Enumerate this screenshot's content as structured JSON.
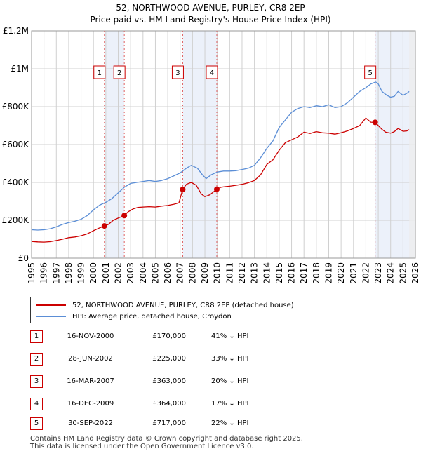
{
  "chart_data": {
    "type": "line",
    "title": "52, NORTHWOOD AVENUE, PURLEY, CR8 2EP",
    "subtitle": "Price paid vs. HM Land Registry's House Price Index (HPI)",
    "xlabel": "",
    "ylabel": "",
    "xlim": [
      1995,
      2026
    ],
    "ylim": [
      0,
      1200000
    ],
    "x_ticks": [
      "1995",
      "1996",
      "1997",
      "1998",
      "1999",
      "2000",
      "2001",
      "2002",
      "2003",
      "2004",
      "2005",
      "2006",
      "2007",
      "2008",
      "2009",
      "2010",
      "2011",
      "2012",
      "2013",
      "2014",
      "2015",
      "2016",
      "2017",
      "2018",
      "2019",
      "2020",
      "2021",
      "2022",
      "2023",
      "2024",
      "2025",
      "2026"
    ],
    "y_ticks": [
      {
        "value": 0,
        "label": "£0"
      },
      {
        "value": 200000,
        "label": "£200K"
      },
      {
        "value": 400000,
        "label": "£400K"
      },
      {
        "value": 600000,
        "label": "£600K"
      },
      {
        "value": 800000,
        "label": "£800K"
      },
      {
        "value": 1000000,
        "label": "£1M"
      },
      {
        "value": 1200000,
        "label": "£1.2M"
      }
    ],
    "grid": true,
    "colors": {
      "property": "#cc0000",
      "hpi": "#5b8ed6",
      "shade": "#dde6f5",
      "grid": "#d0d0d0",
      "vline": "#e06060"
    },
    "series": [
      {
        "name": "52, NORTHWOOD AVENUE, PURLEY, CR8 2EP (detached house)",
        "key": "property",
        "x": [
          1995.0,
          1995.5,
          1996.0,
          1996.5,
          1997.0,
          1997.5,
          1998.0,
          1998.5,
          1999.0,
          1999.5,
          2000.0,
          2000.5,
          2000.88,
          2001.2,
          2001.6,
          2002.0,
          2002.49,
          2002.8,
          2003.2,
          2003.6,
          2004.0,
          2004.5,
          2005.0,
          2005.5,
          2006.0,
          2006.5,
          2006.9,
          2007.21,
          2007.5,
          2007.9,
          2008.3,
          2008.7,
          2009.0,
          2009.4,
          2009.96,
          2010.3,
          2010.7,
          2011.0,
          2011.5,
          2012.0,
          2012.5,
          2013.0,
          2013.5,
          2014.0,
          2014.5,
          2015.0,
          2015.5,
          2016.0,
          2016.5,
          2017.0,
          2017.5,
          2018.0,
          2018.5,
          2019.0,
          2019.5,
          2020.0,
          2020.5,
          2021.0,
          2021.5,
          2022.0,
          2022.4,
          2022.75,
          2023.0,
          2023.3,
          2023.6,
          2024.0,
          2024.3,
          2024.6,
          2025.0,
          2025.3,
          2025.5
        ],
        "values": [
          88000,
          86000,
          85000,
          87000,
          93000,
          100000,
          108000,
          112000,
          118000,
          128000,
          145000,
          160000,
          170000,
          178000,
          200000,
          212000,
          225000,
          245000,
          260000,
          268000,
          270000,
          272000,
          270000,
          275000,
          278000,
          285000,
          292000,
          363000,
          390000,
          400000,
          385000,
          340000,
          325000,
          335000,
          364000,
          375000,
          378000,
          380000,
          385000,
          390000,
          398000,
          410000,
          440000,
          495000,
          520000,
          570000,
          610000,
          625000,
          640000,
          665000,
          658000,
          668000,
          662000,
          660000,
          655000,
          662000,
          672000,
          685000,
          700000,
          740000,
          718000,
          717000,
          700000,
          680000,
          665000,
          660000,
          668000,
          685000,
          670000,
          672000,
          678000
        ]
      },
      {
        "name": "HPI: Average price, detached house, Croydon",
        "key": "hpi",
        "x": [
          1995.0,
          1995.5,
          1996.0,
          1996.5,
          1997.0,
          1997.5,
          1998.0,
          1998.5,
          1999.0,
          1999.5,
          2000.0,
          2000.5,
          2001.0,
          2001.5,
          2002.0,
          2002.5,
          2003.0,
          2003.5,
          2004.0,
          2004.5,
          2005.0,
          2005.5,
          2006.0,
          2006.5,
          2007.0,
          2007.5,
          2007.9,
          2008.4,
          2008.8,
          2009.1,
          2009.5,
          2010.0,
          2010.5,
          2011.0,
          2011.5,
          2012.0,
          2012.5,
          2013.0,
          2013.5,
          2014.0,
          2014.5,
          2015.0,
          2015.5,
          2016.0,
          2016.5,
          2017.0,
          2017.5,
          2018.0,
          2018.5,
          2019.0,
          2019.5,
          2020.0,
          2020.5,
          2021.0,
          2021.5,
          2022.0,
          2022.4,
          2022.8,
          2023.0,
          2023.3,
          2023.7,
          2024.0,
          2024.3,
          2024.6,
          2025.0,
          2025.3,
          2025.5
        ],
        "values": [
          150000,
          148000,
          150000,
          155000,
          165000,
          178000,
          188000,
          195000,
          205000,
          225000,
          255000,
          280000,
          295000,
          315000,
          345000,
          375000,
          395000,
          400000,
          405000,
          410000,
          405000,
          410000,
          420000,
          435000,
          450000,
          475000,
          490000,
          475000,
          440000,
          420000,
          440000,
          455000,
          460000,
          460000,
          462000,
          468000,
          475000,
          490000,
          530000,
          580000,
          620000,
          690000,
          730000,
          770000,
          790000,
          800000,
          795000,
          805000,
          800000,
          810000,
          795000,
          800000,
          820000,
          850000,
          880000,
          900000,
          920000,
          930000,
          920000,
          880000,
          860000,
          850000,
          855000,
          880000,
          860000,
          870000,
          880000
        ]
      }
    ],
    "sales": [
      {
        "id": "1",
        "x": 2000.88,
        "value": 170000
      },
      {
        "id": "2",
        "x": 2002.49,
        "value": 225000
      },
      {
        "id": "3",
        "x": 2007.21,
        "value": 363000
      },
      {
        "id": "4",
        "x": 2009.96,
        "value": 364000
      },
      {
        "id": "5",
        "x": 2022.75,
        "value": 717000
      }
    ],
    "shaded_ranges": [
      [
        2000.88,
        2002.49
      ],
      [
        2007.21,
        2009.96
      ],
      [
        2022.75,
        2026
      ]
    ]
  },
  "legend": {
    "property_label": "52, NORTHWOOD AVENUE, PURLEY, CR8 2EP (detached house)",
    "hpi_label": "HPI: Average price, detached house, Croydon"
  },
  "sales_table": [
    {
      "num": "1",
      "date": "16-NOV-2000",
      "price": "£170,000",
      "hpi": "41% ↓ HPI"
    },
    {
      "num": "2",
      "date": "28-JUN-2002",
      "price": "£225,000",
      "hpi": "33% ↓ HPI"
    },
    {
      "num": "3",
      "date": "16-MAR-2007",
      "price": "£363,000",
      "hpi": "20% ↓ HPI"
    },
    {
      "num": "4",
      "date": "16-DEC-2009",
      "price": "£364,000",
      "hpi": "17% ↓ HPI"
    },
    {
      "num": "5",
      "date": "30-SEP-2022",
      "price": "£717,000",
      "hpi": "22% ↓ HPI"
    }
  ],
  "footer": {
    "line1": "Contains HM Land Registry data © Crown copyright and database right 2025.",
    "line2": "This data is licensed under the Open Government Licence v3.0."
  }
}
